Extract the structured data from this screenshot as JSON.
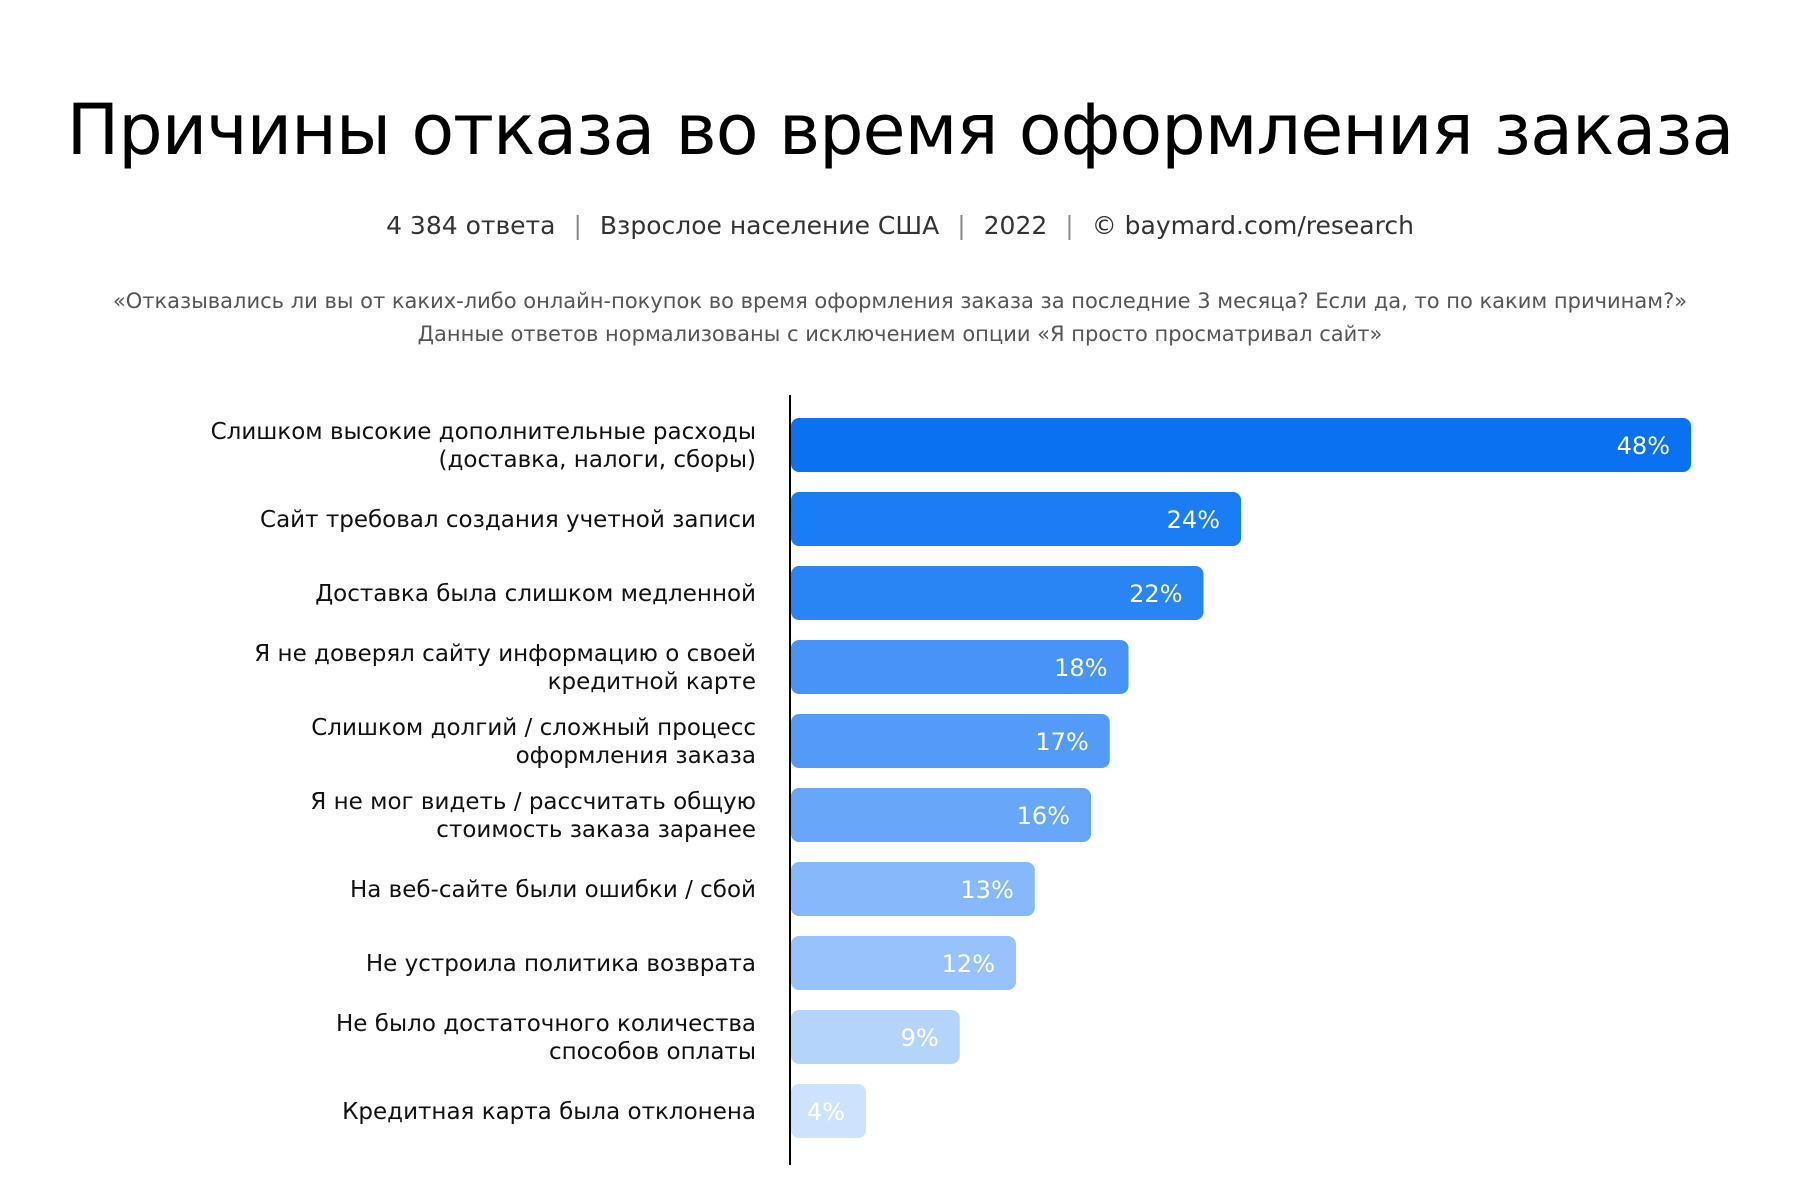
{
  "header": {
    "title": "Причины отказа во время оформления заказа",
    "meta": [
      "4 384 ответа",
      "Взрослое население США",
      "2022",
      "© baymard.com/research"
    ],
    "question_line1": "«Отказывались ли вы от каких-либо онлайн-покупок во время оформления заказа за последние 3 месяца? Если да, то по каким причинам?»",
    "question_line2": "Данные ответов нормализованы с исключением опции «Я просто просматривал сайт»"
  },
  "chart_data": {
    "type": "bar",
    "orientation": "horizontal",
    "categories": [
      [
        "Слишком высокие дополнительные расходы",
        "(доставка, налоги, сборы)"
      ],
      [
        "Сайт требовал создания учетной записи"
      ],
      [
        "Доставка была слишком медленной"
      ],
      [
        "Я не доверял сайту информацию о своей",
        "кредитной карте"
      ],
      [
        "Слишком долгий / сложный процесс",
        "оформления заказа"
      ],
      [
        "Я не мог видеть / рассчитать общую",
        "стоимость заказа заранее"
      ],
      [
        "На веб-сайте были ошибки / сбой"
      ],
      [
        "Не устроила политика возврата"
      ],
      [
        "Не было достаточного количества",
        "способов оплаты"
      ],
      [
        "Кредитная карта была отклонена"
      ]
    ],
    "values": [
      48,
      24,
      22,
      18,
      17,
      16,
      13,
      12,
      9,
      4
    ],
    "value_labels": [
      "48%",
      "24%",
      "22%",
      "18%",
      "17%",
      "16%",
      "13%",
      "12%",
      "9%",
      "4%"
    ],
    "unit": "%",
    "xlim": [
      0,
      48
    ],
    "grid": false,
    "legend": "none",
    "colors": [
      "#0a72f0",
      "#1a7df3",
      "#2a85f4",
      "#4793f7",
      "#549bf7",
      "#67a6f8",
      "#86b8fb",
      "#97c2fb",
      "#b4d4fc",
      "#cde3fd"
    ],
    "label_colors": [
      "#ffffff",
      "#ffffff",
      "#ffffff",
      "#ffffff",
      "#ffffff",
      "#ffffff",
      "#ffffff",
      "#ffffff",
      "#ffffff",
      "#ffffff"
    ]
  }
}
